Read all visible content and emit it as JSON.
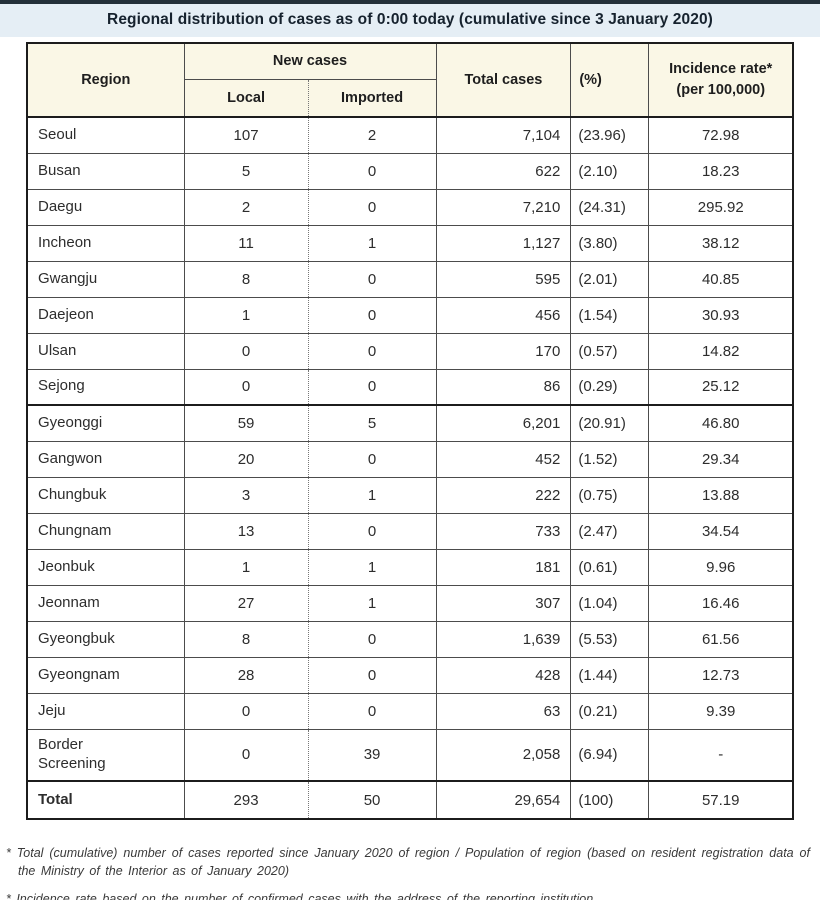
{
  "title": "Regional distribution of cases as of 0:00 today (cumulative since 3 January 2020)",
  "table": {
    "headers": {
      "region": "Region",
      "new_cases": "New cases",
      "local": "Local",
      "imported": "Imported",
      "total_cases": "Total cases",
      "percent": "(%)",
      "incidence_rate_line1": "Incidence rate*",
      "incidence_rate_line2": "(per 100,000)"
    },
    "rows": [
      {
        "region": "Seoul",
        "local": "107",
        "imported": "2",
        "total": "7,104",
        "percent": "(23.96)",
        "incidence": "72.98"
      },
      {
        "region": "Busan",
        "local": "5",
        "imported": "0",
        "total": "622",
        "percent": "(2.10)",
        "incidence": "18.23"
      },
      {
        "region": "Daegu",
        "local": "2",
        "imported": "0",
        "total": "7,210",
        "percent": "(24.31)",
        "incidence": "295.92"
      },
      {
        "region": "Incheon",
        "local": "11",
        "imported": "1",
        "total": "1,127",
        "percent": "(3.80)",
        "incidence": "38.12"
      },
      {
        "region": "Gwangju",
        "local": "8",
        "imported": "0",
        "total": "595",
        "percent": "(2.01)",
        "incidence": "40.85"
      },
      {
        "region": "Daejeon",
        "local": "1",
        "imported": "0",
        "total": "456",
        "percent": "(1.54)",
        "incidence": "30.93"
      },
      {
        "region": "Ulsan",
        "local": "0",
        "imported": "0",
        "total": "170",
        "percent": "(0.57)",
        "incidence": "14.82"
      },
      {
        "region": "Sejong",
        "local": "0",
        "imported": "0",
        "total": "86",
        "percent": "(0.29)",
        "incidence": "25.12"
      },
      {
        "region": "Gyeonggi",
        "local": "59",
        "imported": "5",
        "total": "6,201",
        "percent": "(20.91)",
        "incidence": "46.80"
      },
      {
        "region": "Gangwon",
        "local": "20",
        "imported": "0",
        "total": "452",
        "percent": "(1.52)",
        "incidence": "29.34"
      },
      {
        "region": "Chungbuk",
        "local": "3",
        "imported": "1",
        "total": "222",
        "percent": "(0.75)",
        "incidence": "13.88"
      },
      {
        "region": "Chungnam",
        "local": "13",
        "imported": "0",
        "total": "733",
        "percent": "(2.47)",
        "incidence": "34.54"
      },
      {
        "region": "Jeonbuk",
        "local": "1",
        "imported": "1",
        "total": "181",
        "percent": "(0.61)",
        "incidence": "9.96"
      },
      {
        "region": "Jeonnam",
        "local": "27",
        "imported": "1",
        "total": "307",
        "percent": "(1.04)",
        "incidence": "16.46"
      },
      {
        "region": "Gyeongbuk",
        "local": "8",
        "imported": "0",
        "total": "1,639",
        "percent": "(5.53)",
        "incidence": "61.56"
      },
      {
        "region": "Gyeongnam",
        "local": "28",
        "imported": "0",
        "total": "428",
        "percent": "(1.44)",
        "incidence": "12.73"
      },
      {
        "region": "Jeju",
        "local": "0",
        "imported": "0",
        "total": "63",
        "percent": "(0.21)",
        "incidence": "9.39"
      },
      {
        "region": "Border Screening",
        "local": "0",
        "imported": "39",
        "total": "2,058",
        "percent": "(6.94)",
        "incidence": "-"
      }
    ],
    "total_row": {
      "region": "Total",
      "local": "293",
      "imported": "50",
      "total": "29,654",
      "percent": "(100)",
      "incidence": "57.19"
    }
  },
  "footnotes": [
    "* Total (cumulative) number of cases reported since January 2020 of region / Population of region (based on resident registration data of the Ministry of the Interior as of January 2020)",
    "* Incidence rate based on the number of confirmed cases with the address of the reporting institution"
  ],
  "colors": {
    "top_line": "#233039",
    "title_bar_bg": "#e5eef5",
    "header_cell_bg": "#faf7e6",
    "border": "#4c4c4c",
    "thick_border": "#1c1c1c"
  }
}
